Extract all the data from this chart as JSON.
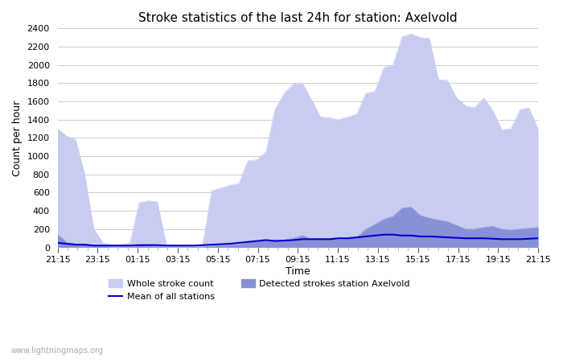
{
  "title": "Stroke statistics of the last 24h for station: Axelvold",
  "xlabel": "Time",
  "ylabel": "Count per hour",
  "watermark": "www.lightningmaps.org",
  "x_labels": [
    "21:15",
    "23:15",
    "01:15",
    "03:15",
    "05:15",
    "07:15",
    "09:15",
    "11:15",
    "13:15",
    "15:15",
    "17:15",
    "19:15",
    "21:15"
  ],
  "ylim": [
    0,
    2400
  ],
  "yticks": [
    0,
    200,
    400,
    600,
    800,
    1000,
    1200,
    1400,
    1600,
    1800,
    2000,
    2200,
    2400
  ],
  "color_whole": "#c8ccf0",
  "color_detected": "#8890d8",
  "color_mean": "#0000cc",
  "legend_labels": [
    "Whole stroke count",
    "Detected strokes station Axelvold",
    "Mean of all stations"
  ],
  "whole_stroke": [
    1300,
    1220,
    1180,
    800,
    200,
    50,
    30,
    30,
    50,
    490,
    510,
    500,
    30,
    30,
    10,
    10,
    30,
    620,
    650,
    680,
    700,
    950,
    960,
    1050,
    1520,
    1690,
    1790,
    1800,
    1620,
    1430,
    1420,
    1400,
    1430,
    1460,
    1690,
    1710,
    1970,
    2000,
    2310,
    2340,
    2300,
    2290,
    1840,
    1830,
    1640,
    1550,
    1530,
    1640,
    1500,
    1290,
    1300,
    1510,
    1530,
    1290
  ],
  "detected_stroke": [
    140,
    55,
    35,
    35,
    10,
    10,
    5,
    5,
    5,
    20,
    15,
    10,
    5,
    5,
    5,
    5,
    5,
    15,
    20,
    25,
    30,
    55,
    65,
    80,
    80,
    80,
    100,
    130,
    90,
    95,
    90,
    90,
    100,
    110,
    200,
    250,
    310,
    340,
    430,
    440,
    350,
    320,
    300,
    280,
    240,
    200,
    200,
    220,
    230,
    200,
    190,
    200,
    210,
    220
  ],
  "mean_stroke": [
    50,
    40,
    30,
    30,
    20,
    20,
    20,
    20,
    20,
    25,
    25,
    25,
    20,
    20,
    20,
    20,
    25,
    30,
    35,
    40,
    50,
    60,
    70,
    80,
    70,
    75,
    80,
    90,
    90,
    90,
    90,
    100,
    100,
    110,
    120,
    130,
    140,
    140,
    130,
    130,
    120,
    120,
    115,
    110,
    105,
    100,
    100,
    100,
    95,
    90,
    90,
    90,
    95,
    100
  ],
  "n_points": 54,
  "x_tick_positions": [
    0,
    8,
    16,
    24,
    32,
    40,
    48,
    56,
    64,
    72,
    80,
    88,
    96
  ]
}
